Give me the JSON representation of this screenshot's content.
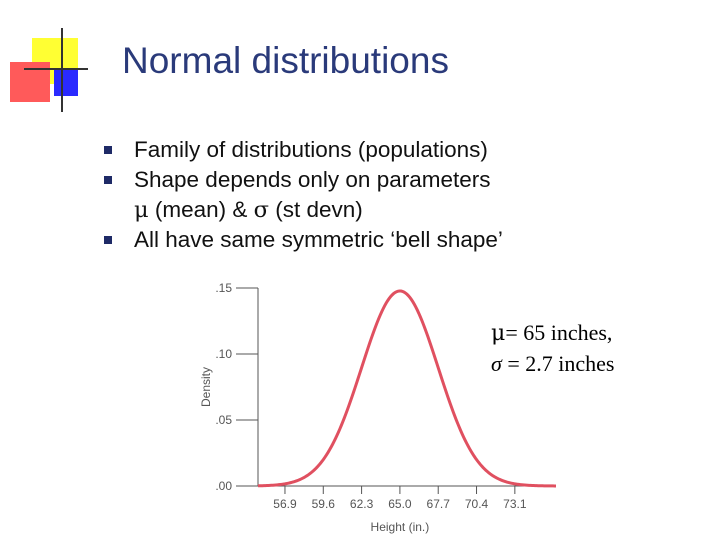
{
  "slide": {
    "title": "Normal distributions",
    "bullets": [
      {
        "text": "Family of distributions (populations)"
      },
      {
        "text": "Shape depends only on parameters",
        "cont": [
          "μ",
          " (mean) & ",
          "σ",
          " (st devn)"
        ]
      },
      {
        "text": "All have same symmetric ‘bell shape’"
      }
    ],
    "annotation": {
      "line1_symbol": "μ",
      "line1_text": "= 65 inches,",
      "line2_symbol": "σ",
      "line2_text": " = 2.7 inches"
    }
  },
  "chart_data": {
    "type": "line",
    "mean": 65.0,
    "sd": 2.7,
    "xlabel": "Height (in.)",
    "ylabel": "Density",
    "x_ticks": [
      "56.9",
      "59.6",
      "62.3",
      "65.0",
      "67.7",
      "70.4",
      "73.1"
    ],
    "x_tick_values": [
      56.9,
      59.6,
      62.3,
      65.0,
      67.7,
      70.4,
      73.1
    ],
    "y_ticks": [
      ".00",
      ".05",
      ".10",
      ".15"
    ],
    "y_tick_values": [
      0,
      0.05,
      0.1,
      0.15
    ],
    "xlim": [
      55.0,
      76.0
    ],
    "ylim": [
      0,
      0.15
    ],
    "line_color": "#e05060",
    "grid": false
  }
}
